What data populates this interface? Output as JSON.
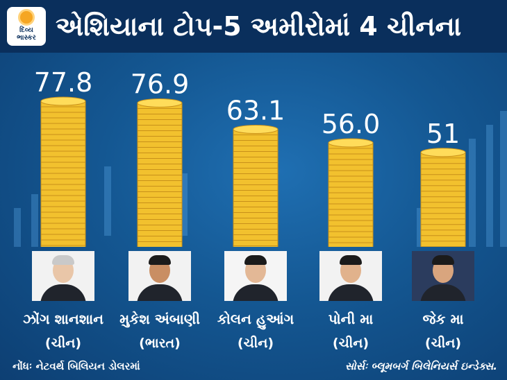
{
  "brand": {
    "logo_text": "દિવ્ય\nભાસ્કર",
    "color": "#f5a623"
  },
  "title": "એશિયાના ટોપ-5 અમીરોમાં 4 ચીનના",
  "chart_data": {
    "type": "bar",
    "categories": [
      "ઝોંગ શાનશાન",
      "મુકેશ અંબાણી",
      "કોલન હુઆંગ",
      "પોની મા",
      "જેક મા"
    ],
    "countries": [
      "(ચીન)",
      "(ભારત)",
      "(ચીન)",
      "(ચીન)",
      "(ચીન)"
    ],
    "values": [
      77.8,
      76.9,
      63.1,
      56.0,
      51
    ],
    "value_labels": [
      "77.8",
      "76.9",
      "63.1",
      "56.0",
      "51"
    ],
    "bar_style": "stacked gold coins",
    "bar_color": "#f2c12e"
  },
  "note": "નોંધઃ નેટવર્થ બિલિયન ડોલરમાં",
  "source": "સોર્સઃ બ્લૂમબર્ગ બિલેનિયર્સ ઇન્ડેક્સ."
}
